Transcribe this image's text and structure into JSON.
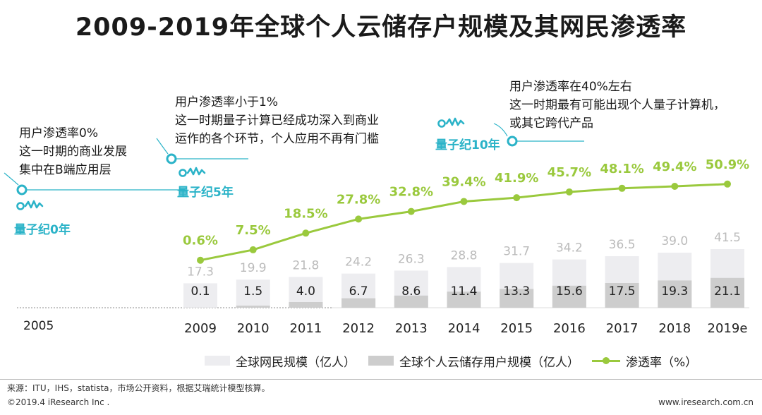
{
  "title": "2009-2019年全球个人云储存户规模及其网民渗透率",
  "chart_data": {
    "type": "bar",
    "title": "2009-2019年全球个人云储存户规模及其网民渗透率",
    "categories": [
      "2009",
      "2010",
      "2011",
      "2012",
      "2013",
      "2014",
      "2015",
      "2016",
      "2017",
      "2018",
      "2019e"
    ],
    "series": [
      {
        "name": "全球网民规模（亿人）",
        "type": "bar",
        "values": [
          17.3,
          19.9,
          21.8,
          24.2,
          26.3,
          28.8,
          31.7,
          34.2,
          36.5,
          39.0,
          41.5
        ]
      },
      {
        "name": "全球个人云储存用户规模（亿人）",
        "type": "bar",
        "values": [
          0.1,
          1.5,
          4.0,
          6.7,
          8.6,
          11.4,
          13.3,
          15.6,
          17.5,
          19.3,
          21.1
        ]
      },
      {
        "name": "渗透率（%）",
        "type": "line",
        "values": [
          0.6,
          7.5,
          18.5,
          27.8,
          32.8,
          39.4,
          41.9,
          45.7,
          48.1,
          49.4,
          50.9
        ]
      }
    ],
    "value_labels": {
      "netizens": [
        "17.3",
        "19.9",
        "21.8",
        "24.2",
        "26.3",
        "28.8",
        "31.7",
        "34.2",
        "36.5",
        "39.0",
        "41.5"
      ],
      "users": [
        "0.1",
        "1.5",
        "4.0",
        "6.7",
        "8.6",
        "11.4",
        "13.3",
        "15.6",
        "17.5",
        "19.3",
        "21.1"
      ],
      "penetration": [
        "0.6%",
        "7.5%",
        "18.5%",
        "27.8%",
        "32.8%",
        "39.4%",
        "41.9%",
        "45.7%",
        "48.1%",
        "49.4%",
        "50.9%"
      ]
    },
    "baseline_label": "2005",
    "ylim_bar": [
      0,
      45
    ],
    "ylim_line": [
      0,
      55
    ],
    "legend": [
      "全球网民规模（亿人）",
      "全球个人云储存用户规模（亿人）",
      "渗透率（%）"
    ],
    "legend_position": "bottom"
  },
  "annotations": {
    "era0": {
      "label": "量子纪0年",
      "lines": [
        "用户渗透率0%",
        "这一时期的商业发展",
        "集中在B端应用层"
      ]
    },
    "era5": {
      "label": "量子纪5年",
      "lines": [
        "用户渗透率小于1%",
        "这一时期量子计算已经成功深入到商业",
        "运作的各个环节，个人应用不再有门槛"
      ]
    },
    "era10": {
      "label": "量子纪10年",
      "lines": [
        "用户渗透率在40%左右",
        "这一时期最有可能出现个人量子计算机，",
        "或其它跨代产品"
      ]
    }
  },
  "footer": {
    "source": "来源：ITU，IHS，statista，市场公开资料，根据艾瑞统计模型核算。",
    "copyright": "©2019.4 iResearch Inc .",
    "website": "www.iresearch.com.cn"
  },
  "colors": {
    "netizen_bar": "#ededf0",
    "user_bar": "#cdcdcd",
    "line": "#9ac93d",
    "accent": "#2bb3c8",
    "label_gray": "#bbbbbb"
  }
}
